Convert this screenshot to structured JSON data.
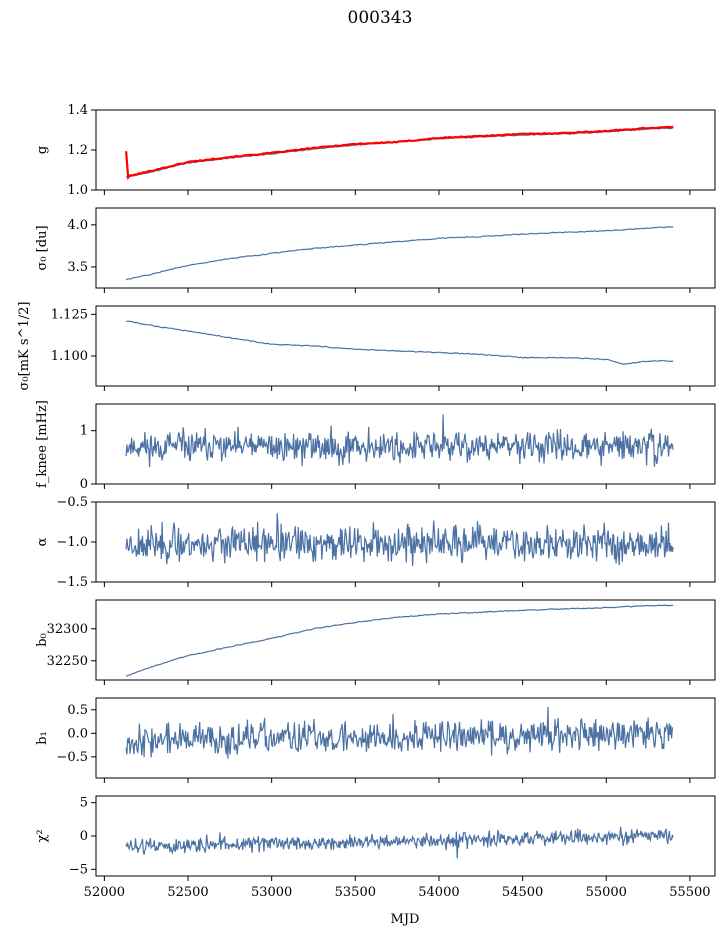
{
  "figure": {
    "title": "000343"
  },
  "chart_data": {
    "type": "line",
    "title": "000343",
    "xlabel": "MJD",
    "xlim": [
      51950,
      55650
    ],
    "xticks": [
      52000,
      52500,
      53000,
      53500,
      54000,
      54500,
      55000,
      55500
    ],
    "x_range_data": [
      52130,
      55400
    ],
    "panels": [
      {
        "ylabel": "g",
        "ylim": [
          1.0,
          1.4
        ],
        "yticks": [
          "1.0",
          "1.2",
          "1.4"
        ],
        "series": [
          {
            "color": "#4c72a4",
            "x": [
              52130,
              52250,
              52500,
              52750,
              53000,
              53250,
              53500,
              53750,
              54000,
              54250,
              54500,
              54750,
              55000,
              55250,
              55400
            ],
            "values": [
              1.065,
              1.085,
              1.135,
              1.16,
              1.18,
              1.205,
              1.225,
              1.24,
              1.255,
              1.265,
              1.275,
              1.28,
              1.29,
              1.305,
              1.31
            ]
          },
          {
            "color": "#ff0000",
            "x": [
              52130,
              52140,
              52150,
              52250,
              52500,
              52750,
              53000,
              53250,
              53500,
              53750,
              54000,
              54250,
              54500,
              54750,
              55000,
              55250,
              55400
            ],
            "values": [
              1.195,
              1.06,
              1.07,
              1.09,
              1.14,
              1.165,
              1.185,
              1.21,
              1.23,
              1.24,
              1.26,
              1.27,
              1.28,
              1.285,
              1.295,
              1.31,
              1.315
            ]
          }
        ]
      },
      {
        "ylabel": "σ₀ [du]",
        "ylim": [
          3.25,
          4.2
        ],
        "yticks": [
          "3.5",
          "4.0"
        ],
        "series": [
          {
            "color": "#4c72a4",
            "x": [
              52130,
              52250,
              52500,
              52750,
              53000,
              53250,
              53500,
              53750,
              54000,
              54250,
              54500,
              54750,
              55000,
              55250,
              55400
            ],
            "values": [
              3.35,
              3.4,
              3.52,
              3.6,
              3.66,
              3.72,
              3.76,
              3.8,
              3.84,
              3.86,
              3.89,
              3.91,
              3.93,
              3.96,
              3.98
            ]
          }
        ]
      },
      {
        "ylabel": "σ₀[mK s^1/2]",
        "ylim": [
          1.082,
          1.13
        ],
        "yticks": [
          "1.100",
          "1.125"
        ],
        "series": [
          {
            "color": "#4c72a4",
            "x": [
              52130,
              52300,
              52500,
              52750,
              53000,
              53250,
              53500,
              53750,
              54000,
              54250,
              54500,
              54750,
              55000,
              55100,
              55250,
              55400
            ],
            "values": [
              1.121,
              1.118,
              1.115,
              1.111,
              1.107,
              1.106,
              1.104,
              1.103,
              1.102,
              1.101,
              1.099,
              1.099,
              1.098,
              1.095,
              1.097,
              1.097
            ]
          }
        ]
      },
      {
        "ylabel": "f_knee [mHz]",
        "ylim": [
          0,
          1.5
        ],
        "yticks": [
          "0",
          "1"
        ],
        "series": [
          {
            "color": "#4c72a4",
            "noise": {
              "mean": 0.7,
              "amp": 0.14,
              "seed": 11
            }
          }
        ]
      },
      {
        "ylabel": "α",
        "ylim": [
          -1.5,
          -0.5
        ],
        "yticks": [
          "−1.5",
          "−1.0",
          "−0.5"
        ],
        "series": [
          {
            "color": "#4c72a4",
            "noise": {
              "mean": -1.02,
              "amp": 0.11,
              "seed": 23
            }
          }
        ]
      },
      {
        "ylabel": "b₀",
        "ylim": [
          32220,
          32345
        ],
        "yticks": [
          "32250",
          "32300"
        ],
        "series": [
          {
            "color": "#4c72a4",
            "x": [
              52130,
              52250,
              52500,
              52750,
              53000,
              53250,
              53500,
              53750,
              54000,
              54250,
              54500,
              54750,
              55000,
              55250,
              55400
            ],
            "values": [
              32226,
              32238,
              32258,
              32272,
              32285,
              32300,
              32310,
              32318,
              32323,
              32326,
              32329,
              32331,
              32333,
              32336,
              32337
            ]
          }
        ]
      },
      {
        "ylabel": "b₁",
        "ylim": [
          -0.95,
          0.75
        ],
        "yticks": [
          "−0.5",
          "0.0",
          "0.5"
        ],
        "series": [
          {
            "color": "#4c72a4",
            "noise": {
              "mean": -0.15,
              "amp": 0.17,
              "seed": 37,
              "drift": 0.15
            }
          }
        ]
      },
      {
        "ylabel": "χ²",
        "ylim": [
          -6,
          6
        ],
        "yticks": [
          "−5",
          "0",
          "5"
        ],
        "series": [
          {
            "color": "#4c72a4",
            "noise": {
              "mean": -1.6,
              "amp": 0.55,
              "seed": 51,
              "drift": 1.6
            }
          }
        ]
      }
    ]
  }
}
